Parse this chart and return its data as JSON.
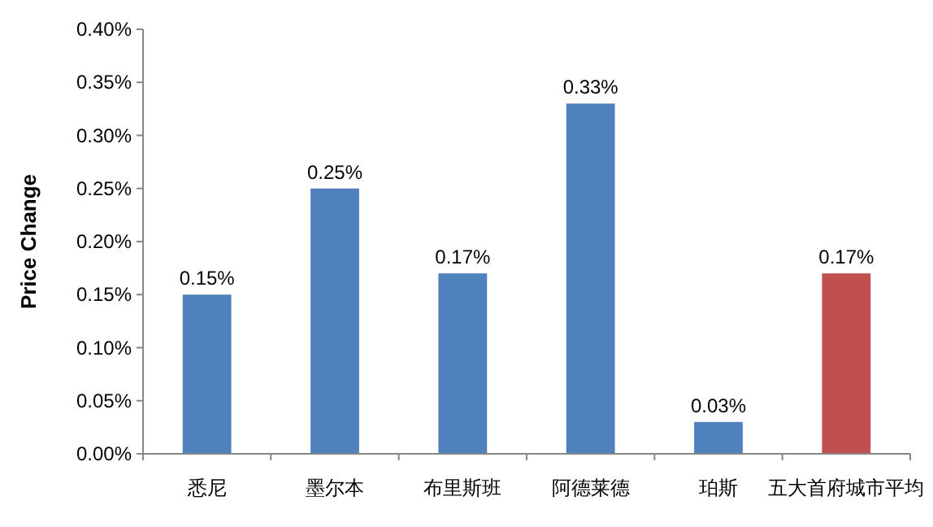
{
  "chart_data": {
    "type": "bar",
    "ylabel": "Price Change",
    "categories": [
      "悉尼",
      "墨尔本",
      "布里斯班",
      "阿德莱德",
      "珀斯",
      "五大首府城市平均"
    ],
    "values": [
      0.15,
      0.25,
      0.17,
      0.33,
      0.03,
      0.17
    ],
    "colors": [
      "#4f81bd",
      "#4f81bd",
      "#4f81bd",
      "#4f81bd",
      "#4f81bd",
      "#c0504d"
    ],
    "value_labels": [
      "0.15%",
      "0.25%",
      "0.17%",
      "0.33%",
      "0.03%",
      "0.17%"
    ],
    "ylim": [
      0,
      0.4
    ],
    "yticks": [
      {
        "value": 0,
        "label": "0.00%"
      },
      {
        "value": 0.05,
        "label": "0.05%"
      },
      {
        "value": 0.1,
        "label": "0.10%"
      },
      {
        "value": 0.15,
        "label": "0.15%"
      },
      {
        "value": 0.2,
        "label": "0.20%"
      },
      {
        "value": 0.25,
        "label": "0.25%"
      },
      {
        "value": 0.3,
        "label": "0.30%"
      },
      {
        "value": 0.35,
        "label": "0.35%"
      },
      {
        "value": 0.4,
        "label": "0.40%"
      }
    ],
    "grid": false
  }
}
